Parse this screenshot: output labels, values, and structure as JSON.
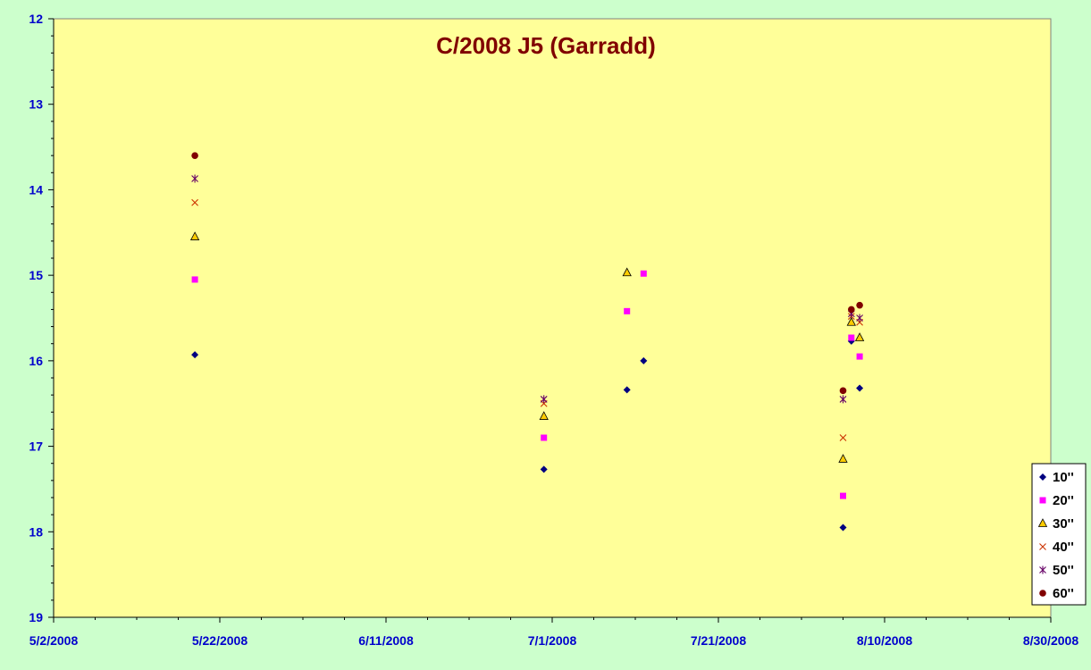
{
  "chart_data": {
    "type": "scatter",
    "title": "C/2008 J5 (Garradd)",
    "xlabel": "",
    "ylabel": "",
    "xlim": [
      "2008-05-02",
      "2008-08-30"
    ],
    "ylim": [
      12,
      19
    ],
    "y_inverted": true,
    "x_ticks": [
      "5/2/2008",
      "5/22/2008",
      "6/11/2008",
      "7/1/2008",
      "7/21/2008",
      "8/10/2008",
      "8/30/2008"
    ],
    "y_ticks": [
      "12",
      "13",
      "14",
      "15",
      "16",
      "17",
      "18",
      "19"
    ],
    "legend_position": "right",
    "series": [
      {
        "name": "10''",
        "marker": "diamond",
        "color": "#000080",
        "points": [
          [
            "2008-05-19",
            15.93
          ],
          [
            "2008-06-30",
            17.27
          ],
          [
            "2008-07-10",
            16.34
          ],
          [
            "2008-07-12",
            16.0
          ],
          [
            "2008-08-05",
            17.95
          ],
          [
            "2008-08-06",
            15.77
          ],
          [
            "2008-08-07",
            16.32
          ]
        ]
      },
      {
        "name": "20''",
        "marker": "square",
        "color": "#ff00ff",
        "points": [
          [
            "2008-05-19",
            15.05
          ],
          [
            "2008-06-30",
            16.9
          ],
          [
            "2008-07-10",
            15.42
          ],
          [
            "2008-07-12",
            14.98
          ],
          [
            "2008-08-05",
            17.58
          ],
          [
            "2008-08-06",
            15.73
          ],
          [
            "2008-08-07",
            15.95
          ]
        ]
      },
      {
        "name": "30''",
        "marker": "triangle",
        "color": "#ffcc00",
        "points": [
          [
            "2008-05-19",
            14.55
          ],
          [
            "2008-06-30",
            16.65
          ],
          [
            "2008-07-10",
            14.97
          ],
          [
            "2008-08-05",
            17.15
          ],
          [
            "2008-08-06",
            15.55
          ],
          [
            "2008-08-07",
            15.73
          ]
        ]
      },
      {
        "name": "40''",
        "marker": "x",
        "color": "#cc3300",
        "points": [
          [
            "2008-05-19",
            14.15
          ],
          [
            "2008-06-30",
            16.5
          ],
          [
            "2008-08-05",
            16.9
          ],
          [
            "2008-08-06",
            15.48
          ],
          [
            "2008-08-07",
            15.55
          ]
        ]
      },
      {
        "name": "50''",
        "marker": "star",
        "color": "#660066",
        "points": [
          [
            "2008-05-19",
            13.87
          ],
          [
            "2008-06-30",
            16.45
          ],
          [
            "2008-08-05",
            16.45
          ],
          [
            "2008-08-06",
            15.45
          ],
          [
            "2008-08-07",
            15.5
          ]
        ]
      },
      {
        "name": "60''",
        "marker": "circle",
        "color": "#800000",
        "points": [
          [
            "2008-05-19",
            13.6
          ],
          [
            "2008-08-05",
            16.35
          ],
          [
            "2008-08-06",
            15.4
          ],
          [
            "2008-08-07",
            15.35
          ]
        ]
      }
    ]
  }
}
